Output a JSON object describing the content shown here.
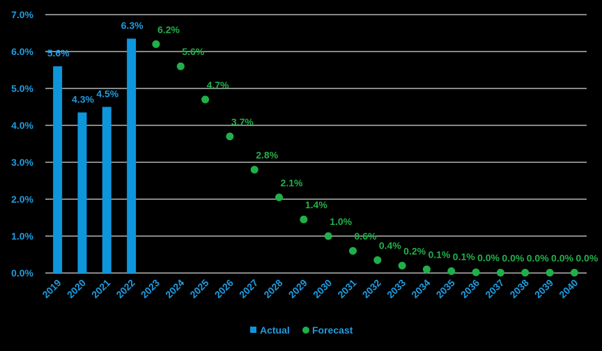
{
  "chart_data": {
    "type": "bar",
    "x": [
      "2019",
      "2020",
      "2021",
      "2022",
      "2023",
      "2024",
      "2025",
      "2026",
      "2027",
      "2028",
      "2029",
      "2030",
      "2031",
      "2032",
      "2033",
      "2034",
      "2035",
      "2036",
      "2037",
      "2038",
      "2039",
      "2040"
    ],
    "ylim": [
      0,
      7
    ],
    "yticks": [
      0,
      1,
      2,
      3,
      4,
      5,
      6,
      7
    ],
    "ytick_labels": [
      "0.0%",
      "1.0%",
      "2.0%",
      "3.0%",
      "4.0%",
      "5.0%",
      "6.0%",
      "7.0%"
    ],
    "grid": true,
    "legend": "bottom",
    "series": [
      {
        "name": "Actual",
        "kind": "bar",
        "color": "#0e96dc",
        "x": [
          "2019",
          "2020",
          "2021",
          "2022"
        ],
        "values": [
          5.6,
          4.35,
          4.5,
          6.35
        ],
        "labels": [
          "5.6%",
          "4.3%",
          "4.5%",
          "6.3%"
        ]
      },
      {
        "name": "Forecast",
        "kind": "scatter",
        "color": "#1fb04a",
        "x": [
          "2023",
          "2024",
          "2025",
          "2026",
          "2027",
          "2028",
          "2029",
          "2030",
          "2031",
          "2032",
          "2033",
          "2034",
          "2035",
          "2036",
          "2037",
          "2038",
          "2039",
          "2040"
        ],
        "values": [
          6.2,
          5.6,
          4.7,
          3.7,
          2.8,
          2.05,
          1.45,
          1.0,
          0.6,
          0.35,
          0.2,
          0.1,
          0.05,
          0.02,
          0.01,
          0.01,
          0.01,
          0.01
        ],
        "labels": [
          "6.2%",
          "5.6%",
          "4.7%",
          "3.7%",
          "2.8%",
          "2.1%",
          "1.4%",
          "1.0%",
          "0.6%",
          "0.4%",
          "0.2%",
          "0.1%",
          "0.1%",
          "0.0%",
          "0.0%",
          "0.0%",
          "0.0%",
          "0.0%"
        ]
      }
    ]
  }
}
